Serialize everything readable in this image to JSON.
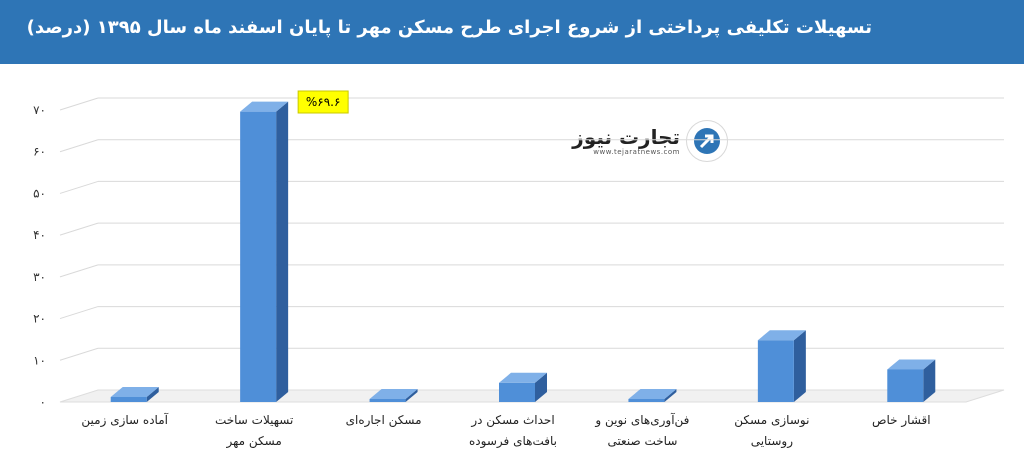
{
  "header": {
    "title": "تسهیلات تکلیفی پرداختی از شروع اجرای طرح مسکن مهر تا پایان اسفند ماه سال ۱۳۹۵ (درصد)"
  },
  "logo": {
    "name": "تجارت نیوز",
    "url": "www.tejaratnews.com"
  },
  "colors": {
    "header": "#2e75b6",
    "bar_front": "#4f8fd8",
    "bar_side": "#2f5f9e",
    "bar_top": "#7fb0e8",
    "highlight": "#ffff00"
  },
  "chart_data": {
    "type": "bar",
    "title": "تسهیلات تکلیفی پرداختی از شروع اجرای طرح مسکن مهر تا پایان اسفند ماه سال ۱۳۹۵ (درصد)",
    "categories": [
      [
        "آماده سازی زمین"
      ],
      [
        "تسهیلات ساخت",
        "مسکن مهر"
      ],
      [
        "مسکن اجاره‌ای"
      ],
      [
        "احداث مسکن در",
        "بافت‌های فرسوده"
      ],
      [
        "فن‌آوری‌های نوین و",
        "ساخت صنعتی"
      ],
      [
        "نوسازی مسکن",
        "روستایی"
      ],
      [
        "اقشار خاص"
      ]
    ],
    "values": [
      1.2,
      69.6,
      0.7,
      4.6,
      0.6,
      14.8,
      7.8
    ],
    "ylim": [
      0,
      70
    ],
    "yticks": [
      "۰",
      "۱۰",
      "۲۰",
      "۳۰",
      "۴۰",
      "۵۰",
      "۶۰",
      "۷۰"
    ],
    "grid": true,
    "annotation": {
      "category_index": 1,
      "text": "%۶۹.۶"
    }
  }
}
